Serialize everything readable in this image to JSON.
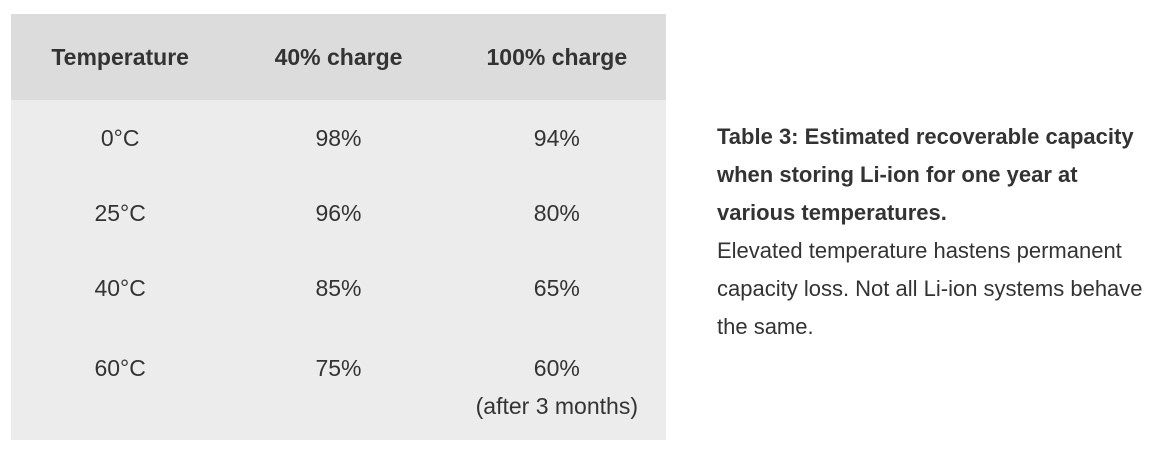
{
  "table": {
    "headers": [
      "Temperature",
      "40% charge",
      "100% charge"
    ],
    "rows": [
      {
        "temperature": "0°C",
        "charge40": "98%",
        "charge100": "94%",
        "note": ""
      },
      {
        "temperature": "25°C",
        "charge40": "96%",
        "charge100": "80%",
        "note": ""
      },
      {
        "temperature": "40°C",
        "charge40": "85%",
        "charge100": "65%",
        "note": ""
      },
      {
        "temperature": "60°C",
        "charge40": "75%",
        "charge100": "60%",
        "note": "(after 3 months)"
      }
    ],
    "colors": {
      "header_bg": "#dcdcdc",
      "body_bg": "#ececec",
      "text": "#333333",
      "page_bg": "#ffffff"
    }
  },
  "caption": {
    "bold": "Table 3: Estimated recoverable capacity when storing Li-ion for one year at various temperatures.",
    "regular": "Elevated temperature hastens permanent capacity loss. Not all Li-ion systems behave the same."
  },
  "chart_data": {
    "type": "table",
    "title": "Table 3: Estimated recoverable capacity when storing Li-ion for one year at various temperatures.",
    "subtitle": "Elevated temperature hastens permanent capacity loss. Not all Li-ion systems behave the same.",
    "columns": [
      "Temperature",
      "40% charge",
      "100% charge"
    ],
    "rows": [
      [
        "0°C",
        "98%",
        "94%"
      ],
      [
        "25°C",
        "96%",
        "80%"
      ],
      [
        "40°C",
        "85%",
        "65%"
      ],
      [
        "60°C",
        "75%",
        "60% (after 3 months)"
      ]
    ]
  }
}
